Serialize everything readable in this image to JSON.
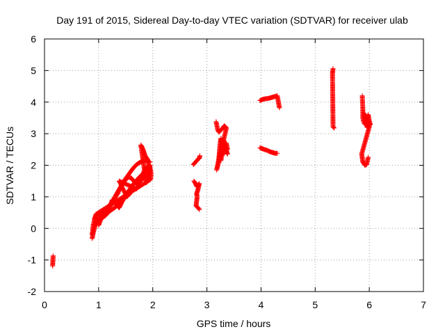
{
  "chart_data": {
    "type": "scatter",
    "title": "Day 191 of 2015, Sidereal Day-to-day VTEC variation (SDTVAR) for receiver ulab",
    "xlabel": "GPS time / hours",
    "ylabel": "SDTVAR / TECUs",
    "xlim": [
      0,
      7
    ],
    "ylim": [
      -2,
      6
    ],
    "x_ticks": [
      0,
      1,
      2,
      3,
      4,
      5,
      6,
      7
    ],
    "y_ticks": [
      -2,
      -1,
      0,
      1,
      2,
      3,
      4,
      5,
      6
    ],
    "x_tick_labels": [
      "0",
      "1",
      "2",
      "3",
      "4",
      "5",
      "6",
      "7"
    ],
    "y_tick_labels": [
      "-2",
      "-1",
      "0",
      "1",
      "2",
      "3",
      "4",
      "5",
      "6"
    ],
    "grid": true,
    "marker": "plus",
    "color": "#ff0000",
    "series": [
      {
        "name": "SDTVAR",
        "segments": [
          {
            "id": "early",
            "points": [
              [
                0.16,
                -0.87
              ],
              [
                0.15,
                -1.19
              ]
            ]
          },
          {
            "id": "rise-lower",
            "points": [
              [
                0.88,
                -0.32
              ],
              [
                0.9,
                -0.15
              ],
              [
                0.93,
                0.05
              ],
              [
                0.96,
                0.2
              ],
              [
                1.0,
                0.3
              ],
              [
                1.05,
                0.38
              ],
              [
                1.1,
                0.45
              ],
              [
                1.15,
                0.5
              ],
              [
                1.2,
                0.55
              ],
              [
                1.25,
                0.6
              ],
              [
                1.3,
                0.66
              ],
              [
                1.35,
                0.74
              ],
              [
                1.4,
                0.84
              ],
              [
                1.45,
                0.95
              ],
              [
                1.5,
                1.07
              ],
              [
                1.55,
                1.18
              ],
              [
                1.6,
                1.3
              ],
              [
                1.65,
                1.42
              ],
              [
                1.7,
                1.52
              ],
              [
                1.75,
                1.62
              ],
              [
                1.8,
                1.7
              ],
              [
                1.85,
                1.78
              ],
              [
                1.9,
                1.84
              ],
              [
                1.95,
                1.9
              ]
            ]
          },
          {
            "id": "rise-upper",
            "points": [
              [
                0.92,
                0.3
              ],
              [
                0.96,
                0.42
              ],
              [
                1.0,
                0.45
              ],
              [
                1.05,
                0.5
              ],
              [
                1.1,
                0.55
              ],
              [
                1.15,
                0.62
              ],
              [
                1.2,
                0.72
              ],
              [
                1.25,
                0.85
              ],
              [
                1.3,
                1.0
              ],
              [
                1.35,
                1.15
              ],
              [
                1.4,
                1.3
              ],
              [
                1.45,
                1.45
              ],
              [
                1.5,
                1.58
              ],
              [
                1.55,
                1.7
              ],
              [
                1.6,
                1.82
              ],
              [
                1.65,
                1.93
              ],
              [
                1.7,
                2.02
              ],
              [
                1.75,
                2.08
              ],
              [
                1.8,
                2.12
              ],
              [
                1.85,
                2.15
              ],
              [
                1.9,
                2.15
              ],
              [
                1.95,
                2.1
              ]
            ]
          },
          {
            "id": "loop",
            "points": [
              [
                1.3,
                0.95
              ],
              [
                1.35,
                1.1
              ],
              [
                1.4,
                1.28
              ],
              [
                1.45,
                1.42
              ],
              [
                1.5,
                1.55
              ],
              [
                1.55,
                1.62
              ],
              [
                1.6,
                1.6
              ],
              [
                1.65,
                1.5
              ],
              [
                1.7,
                1.4
              ],
              [
                1.75,
                1.45
              ],
              [
                1.8,
                1.55
              ],
              [
                1.85,
                1.62
              ],
              [
                1.9,
                1.68
              ],
              [
                1.95,
                1.75
              ]
            ]
          },
          {
            "id": "rise-scatter",
            "points": [
              [
                1.0,
                0.1
              ],
              [
                1.02,
                0.2
              ],
              [
                1.04,
                0.28
              ],
              [
                1.08,
                0.35
              ],
              [
                1.12,
                0.4
              ],
              [
                1.18,
                0.5
              ],
              [
                1.25,
                0.9
              ],
              [
                1.38,
                0.65
              ],
              [
                1.42,
                0.8
              ],
              [
                1.48,
                0.98
              ],
              [
                1.58,
                1.1
              ],
              [
                1.52,
                1.0
              ],
              [
                1.38,
                1.5
              ],
              [
                1.7,
                1.25
              ],
              [
                1.86,
                1.9
              ],
              [
                1.92,
                1.95
              ],
              [
                1.95,
                2.0
              ],
              [
                1.93,
                1.6
              ],
              [
                1.88,
                1.45
              ],
              [
                1.78,
                2.64
              ],
              [
                1.8,
                2.58
              ],
              [
                1.82,
                2.5
              ],
              [
                1.84,
                2.4
              ],
              [
                1.86,
                2.3
              ],
              [
                1.9,
                2.2
              ],
              [
                1.92,
                2.05
              ],
              [
                1.96,
                1.85
              ],
              [
                1.97,
                1.7
              ],
              [
                1.96,
                1.55
              ],
              [
                0.95,
                0.45
              ],
              [
                0.9,
                0.1
              ],
              [
                0.88,
                -0.2
              ]
            ]
          },
          {
            "id": "h2.8-upper",
            "points": [
              [
                2.75,
                2.02
              ],
              [
                2.77,
                2.06
              ],
              [
                2.8,
                2.12
              ],
              [
                2.82,
                2.16
              ],
              [
                2.84,
                2.2
              ],
              [
                2.86,
                2.22
              ],
              [
                2.87,
                2.3
              ]
            ]
          },
          {
            "id": "h2.8-lower",
            "points": [
              [
                2.76,
                1.5
              ],
              [
                2.78,
                1.45
              ],
              [
                2.8,
                1.38
              ],
              [
                2.82,
                1.32
              ],
              [
                2.84,
                1.38
              ],
              [
                2.86,
                1.42
              ],
              [
                2.83,
                1.2
              ],
              [
                2.81,
                1.1
              ],
              [
                2.82,
                1.0
              ],
              [
                2.8,
                0.72
              ],
              [
                2.82,
                0.68
              ],
              [
                2.84,
                0.65
              ],
              [
                2.86,
                0.6
              ]
            ]
          },
          {
            "id": "h3.2",
            "points": [
              [
                3.17,
                3.38
              ],
              [
                3.2,
                3.12
              ],
              [
                3.22,
                3.05
              ],
              [
                3.25,
                3.1
              ],
              [
                3.28,
                3.15
              ],
              [
                3.3,
                3.2
              ],
              [
                3.32,
                3.25
              ],
              [
                3.34,
                3.22
              ],
              [
                3.36,
                3.18
              ],
              [
                3.18,
                1.85
              ],
              [
                3.2,
                2.0
              ],
              [
                3.22,
                2.2
              ],
              [
                3.23,
                2.4
              ],
              [
                3.24,
                2.6
              ],
              [
                3.25,
                2.75
              ],
              [
                3.26,
                2.85
              ],
              [
                3.28,
                2.3
              ],
              [
                3.3,
                2.4
              ],
              [
                3.32,
                2.55
              ],
              [
                3.34,
                2.6
              ],
              [
                3.36,
                2.45
              ],
              [
                3.38,
                2.35
              ],
              [
                3.3,
                2.8
              ],
              [
                3.26,
                2.15
              ],
              [
                3.24,
                2.3
              ],
              [
                3.36,
                2.7
              ],
              [
                3.38,
                2.5
              ]
            ]
          },
          {
            "id": "h4-upper",
            "points": [
              [
                3.98,
                4.05
              ],
              [
                4.02,
                4.08
              ],
              [
                4.06,
                4.1
              ],
              [
                4.1,
                4.11
              ],
              [
                4.14,
                4.12
              ],
              [
                4.18,
                4.14
              ],
              [
                4.22,
                4.16
              ],
              [
                4.26,
                4.18
              ],
              [
                4.3,
                4.2
              ],
              [
                4.34,
                3.82
              ]
            ]
          },
          {
            "id": "h4-lower",
            "points": [
              [
                3.98,
                2.55
              ],
              [
                4.02,
                2.53
              ],
              [
                4.06,
                2.5
              ],
              [
                4.1,
                2.48
              ],
              [
                4.14,
                2.45
              ],
              [
                4.18,
                2.42
              ],
              [
                4.22,
                2.4
              ],
              [
                4.26,
                2.38
              ],
              [
                4.3,
                2.38
              ]
            ]
          },
          {
            "id": "h5.3",
            "points": [
              [
                5.33,
                5.06
              ],
              [
                5.32,
                4.9
              ],
              [
                5.33,
                3.22
              ],
              [
                5.35,
                3.18
              ]
            ]
          },
          {
            "id": "h5.9",
            "points": [
              [
                5.87,
                4.2
              ],
              [
                5.88,
                3.8
              ],
              [
                5.88,
                3.5
              ],
              [
                5.9,
                3.35
              ],
              [
                5.92,
                3.3
              ],
              [
                5.95,
                3.45
              ],
              [
                5.98,
                3.6
              ],
              [
                6.0,
                3.4
              ],
              [
                6.02,
                3.3
              ],
              [
                5.96,
                3.2
              ],
              [
                5.9,
                3.65
              ],
              [
                5.94,
                3.52
              ],
              [
                5.98,
                3.35
              ],
              [
                6.0,
                3.22
              ],
              [
                5.86,
                2.36
              ],
              [
                5.88,
                2.1
              ],
              [
                5.9,
                2.05
              ],
              [
                5.92,
                2.0
              ],
              [
                5.95,
                2.02
              ],
              [
                5.98,
                2.25
              ]
            ]
          }
        ]
      }
    ]
  }
}
